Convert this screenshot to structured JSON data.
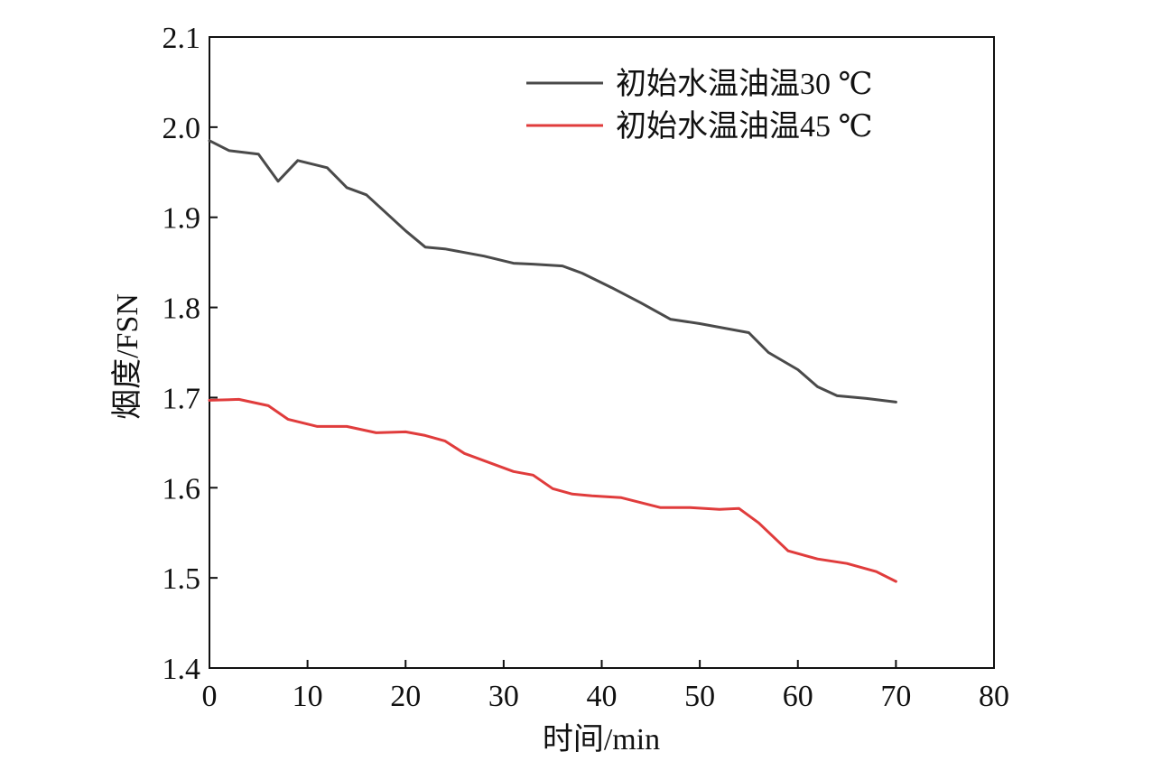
{
  "chart_data": {
    "type": "line",
    "title": "",
    "xlabel": "时间/min",
    "ylabel": "烟度/FSN",
    "xlim": [
      0,
      80
    ],
    "ylim": [
      1.4,
      2.1
    ],
    "xticks": [
      0,
      10,
      20,
      30,
      40,
      50,
      60,
      70,
      80
    ],
    "yticks": [
      1.4,
      1.5,
      1.6,
      1.7,
      1.8,
      1.9,
      2.0,
      2.1
    ],
    "xtick_labels": [
      "0",
      "10",
      "20",
      "30",
      "40",
      "50",
      "60",
      "70",
      "80"
    ],
    "ytick_labels": [
      "1.4",
      "1.5",
      "1.6",
      "1.7",
      "1.8",
      "1.9",
      "2.0",
      "2.1"
    ],
    "grid": false,
    "legend_position": "top-right",
    "series": [
      {
        "name": "初始水温油温30 ℃",
        "color": "#4a4a4a",
        "x": [
          0,
          2,
          5,
          7,
          9,
          12,
          14,
          16,
          18,
          20,
          22,
          24,
          26,
          28,
          31,
          33,
          36,
          38,
          41,
          44,
          47,
          50,
          53,
          55,
          57,
          60,
          62,
          64,
          67,
          70
        ],
        "y": [
          1.985,
          1.974,
          1.97,
          1.94,
          1.963,
          1.955,
          1.933,
          1.925,
          1.905,
          1.885,
          1.867,
          1.865,
          1.861,
          1.857,
          1.849,
          1.848,
          1.846,
          1.838,
          1.822,
          1.805,
          1.787,
          1.782,
          1.776,
          1.772,
          1.75,
          1.731,
          1.712,
          1.702,
          1.699,
          1.695
        ]
      },
      {
        "name": "初始水温油温45 ℃",
        "color": "#e03c3c",
        "x": [
          0,
          3,
          6,
          8,
          11,
          14,
          17,
          20,
          22,
          24,
          26,
          28,
          31,
          33,
          35,
          37,
          39,
          42,
          46,
          49,
          52,
          54,
          56,
          59,
          62,
          65,
          68,
          70
        ],
        "y": [
          1.697,
          1.698,
          1.691,
          1.676,
          1.668,
          1.668,
          1.661,
          1.662,
          1.658,
          1.652,
          1.638,
          1.63,
          1.618,
          1.614,
          1.599,
          1.593,
          1.591,
          1.589,
          1.578,
          1.578,
          1.576,
          1.577,
          1.561,
          1.53,
          1.521,
          1.516,
          1.507,
          1.496
        ]
      }
    ]
  }
}
